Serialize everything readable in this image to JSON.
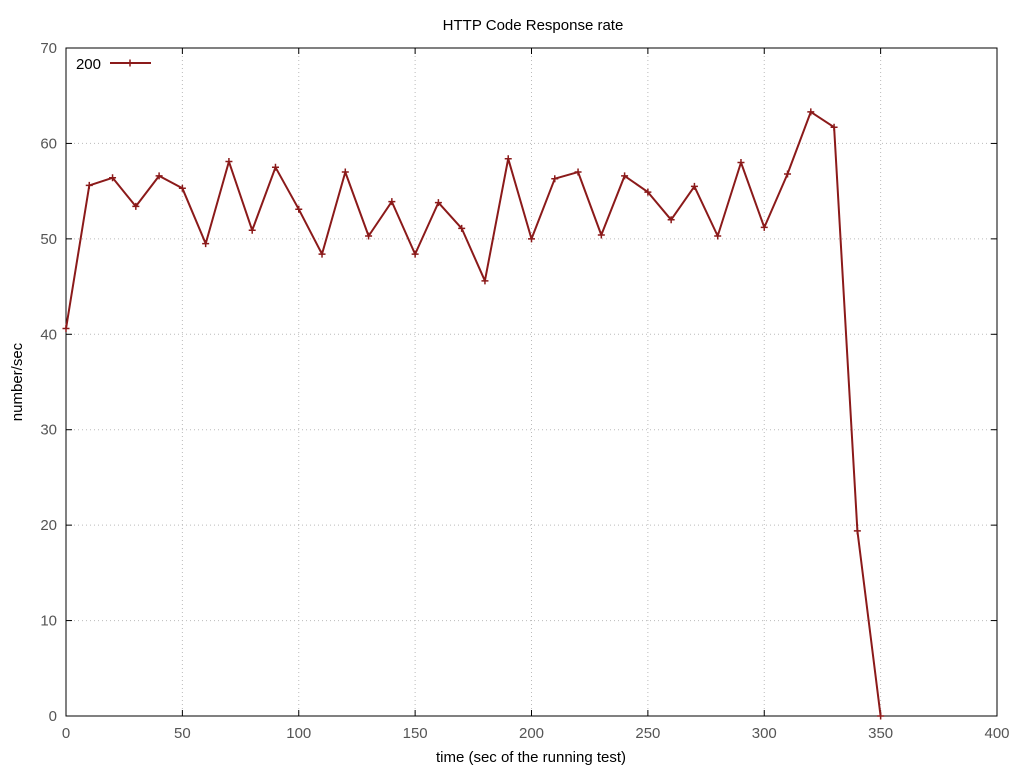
{
  "chart_data": {
    "type": "line",
    "title": "HTTP Code Response rate",
    "xlabel": "time (sec of the running test)",
    "ylabel": "number/sec",
    "xlim": [
      0,
      400
    ],
    "ylim": [
      0,
      70
    ],
    "xticks": [
      0,
      50,
      100,
      150,
      200,
      250,
      300,
      350,
      400
    ],
    "yticks": [
      0,
      10,
      20,
      30,
      40,
      50,
      60,
      70
    ],
    "grid": true,
    "legend_position": "top-left",
    "series": [
      {
        "name": "200",
        "color": "#8b1a1a",
        "x": [
          0,
          10,
          20,
          30,
          40,
          50,
          60,
          70,
          80,
          90,
          100,
          110,
          120,
          130,
          140,
          150,
          160,
          170,
          180,
          190,
          200,
          210,
          220,
          230,
          240,
          250,
          260,
          270,
          280,
          290,
          300,
          310,
          320,
          330,
          340,
          350
        ],
        "y": [
          40.6,
          55.6,
          56.4,
          53.4,
          56.6,
          55.3,
          49.5,
          58.1,
          50.9,
          57.5,
          53.1,
          48.4,
          57.0,
          50.3,
          53.9,
          48.4,
          53.8,
          51.1,
          45.6,
          58.4,
          50.0,
          56.3,
          57.0,
          50.4,
          56.6,
          54.9,
          52.0,
          55.5,
          50.3,
          58.0,
          51.2,
          56.8,
          63.3,
          61.7,
          19.4,
          0.0
        ]
      }
    ]
  }
}
